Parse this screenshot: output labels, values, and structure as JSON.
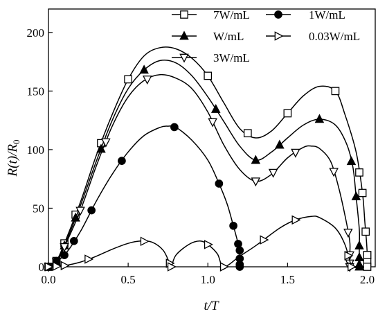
{
  "chart_data": {
    "type": "line",
    "xlabel": "t/T",
    "ylabel": "R(t)/R0",
    "xlim": [
      0,
      2.05
    ],
    "ylim": [
      0,
      220
    ],
    "xticks": [
      "0.0",
      "0.5",
      "1.0",
      "1.5",
      "2.0"
    ],
    "yticks": [
      "0",
      "50",
      "100",
      "150",
      "200"
    ],
    "grid": false,
    "legend_position": "top-right",
    "series": [
      {
        "name": "7W/mL",
        "marker": "square-open",
        "points": [
          [
            0,
            0
          ],
          [
            0.05,
            5
          ],
          [
            0.1,
            20
          ],
          [
            0.2,
            55
          ],
          [
            0.3,
            95
          ],
          [
            0.4,
            130
          ],
          [
            0.5,
            160
          ],
          [
            0.6,
            180
          ],
          [
            0.7,
            187
          ],
          [
            0.8,
            186
          ],
          [
            0.9,
            178
          ],
          [
            1.0,
            163
          ],
          [
            1.1,
            140
          ],
          [
            1.2,
            118
          ],
          [
            1.3,
            110
          ],
          [
            1.4,
            116
          ],
          [
            1.5,
            131
          ],
          [
            1.6,
            146
          ],
          [
            1.7,
            154
          ],
          [
            1.8,
            150
          ],
          [
            1.86,
            130
          ],
          [
            1.93,
            98
          ],
          [
            1.97,
            63
          ],
          [
            1.985,
            38
          ],
          [
            1.995,
            22
          ],
          [
            2.0,
            10
          ],
          [
            2.0,
            4
          ],
          [
            2.0,
            0
          ]
        ],
        "markers_x": [
          0,
          0.05,
          0.1,
          0.17,
          0.33,
          0.5,
          1.0,
          1.25,
          1.5,
          1.8,
          1.95,
          1.97,
          1.99,
          2.0,
          2.0,
          2.0,
          2.0
        ]
      },
      {
        "name": "W/mL",
        "marker": "triangle-up-filled",
        "points": [
          [
            0,
            0
          ],
          [
            0.05,
            4
          ],
          [
            0.1,
            18
          ],
          [
            0.2,
            52
          ],
          [
            0.3,
            90
          ],
          [
            0.4,
            125
          ],
          [
            0.5,
            152
          ],
          [
            0.6,
            168
          ],
          [
            0.7,
            176
          ],
          [
            0.8,
            174
          ],
          [
            0.9,
            163
          ],
          [
            1.0,
            145
          ],
          [
            1.1,
            124
          ],
          [
            1.2,
            103
          ],
          [
            1.3,
            91
          ],
          [
            1.4,
            98
          ],
          [
            1.5,
            110
          ],
          [
            1.6,
            121
          ],
          [
            1.7,
            126
          ],
          [
            1.8,
            121
          ],
          [
            1.87,
            105
          ],
          [
            1.91,
            85
          ],
          [
            1.93,
            60
          ],
          [
            1.95,
            32
          ],
          [
            1.95,
            18
          ],
          [
            1.95,
            8
          ],
          [
            1.95,
            2
          ],
          [
            1.95,
            0
          ]
        ],
        "markers_x": [
          0,
          0.05,
          0.1,
          0.17,
          0.33,
          0.6,
          1.05,
          1.3,
          1.45,
          1.7,
          1.9,
          1.93,
          1.95,
          1.95,
          1.95,
          1.95
        ]
      },
      {
        "name": "3W/mL",
        "marker": "triangle-down-open",
        "points": [
          [
            0,
            0
          ],
          [
            0.05,
            4
          ],
          [
            0.1,
            17
          ],
          [
            0.2,
            48
          ],
          [
            0.3,
            86
          ],
          [
            0.4,
            120
          ],
          [
            0.5,
            145
          ],
          [
            0.6,
            159
          ],
          [
            0.7,
            164
          ],
          [
            0.8,
            161
          ],
          [
            0.9,
            152
          ],
          [
            1.0,
            132
          ],
          [
            1.1,
            104
          ],
          [
            1.2,
            83
          ],
          [
            1.3,
            73
          ],
          [
            1.4,
            79
          ],
          [
            1.5,
            93
          ],
          [
            1.6,
            102
          ],
          [
            1.65,
            103
          ],
          [
            1.7,
            101
          ],
          [
            1.77,
            90
          ],
          [
            1.82,
            68
          ],
          [
            1.86,
            44
          ],
          [
            1.89,
            22
          ],
          [
            1.89,
            10
          ],
          [
            1.89,
            3
          ],
          [
            1.89,
            0
          ]
        ],
        "markers_x": [
          0,
          0.05,
          0.1,
          0.2,
          0.36,
          0.62,
          1.03,
          1.3,
          1.41,
          1.55,
          1.79,
          1.88,
          1.89,
          1.89,
          1.89
        ]
      },
      {
        "name": "1W/mL",
        "marker": "circle-filled",
        "points": [
          [
            0,
            0
          ],
          [
            0.1,
            10
          ],
          [
            0.2,
            30
          ],
          [
            0.3,
            56
          ],
          [
            0.4,
            79
          ],
          [
            0.5,
            98
          ],
          [
            0.6,
            112
          ],
          [
            0.7,
            119
          ],
          [
            0.75,
            120
          ],
          [
            0.8,
            119
          ],
          [
            0.9,
            108
          ],
          [
            1.0,
            91
          ],
          [
            1.07,
            71
          ],
          [
            1.12,
            54
          ],
          [
            1.15,
            40
          ],
          [
            1.18,
            25
          ],
          [
            1.2,
            14
          ],
          [
            1.2,
            7
          ],
          [
            1.2,
            2
          ],
          [
            1.2,
            0
          ]
        ],
        "markers_x": [
          0,
          0.05,
          0.1,
          0.16,
          0.27,
          0.46,
          0.79,
          1.07,
          1.16,
          1.19,
          1.2,
          1.2,
          1.2,
          1.2
        ]
      },
      {
        "name": "0.03W/mL",
        "marker": "triangle-right-open",
        "points": [
          [
            0,
            0
          ],
          [
            0.1,
            1
          ],
          [
            0.2,
            4
          ],
          [
            0.3,
            9
          ],
          [
            0.4,
            15
          ],
          [
            0.5,
            20
          ],
          [
            0.58,
            22
          ],
          [
            0.65,
            21
          ],
          [
            0.72,
            14
          ],
          [
            0.76,
            3
          ],
          [
            0.77,
            0
          ],
          [
            0.8,
            10
          ],
          [
            0.88,
            19
          ],
          [
            0.95,
            22
          ],
          [
            1.0,
            19
          ],
          [
            1.06,
            11
          ],
          [
            1.1,
            0
          ],
          [
            1.2,
            9
          ],
          [
            1.3,
            18
          ],
          [
            1.45,
            33
          ],
          [
            1.55,
            40
          ],
          [
            1.65,
            43
          ],
          [
            1.7,
            42
          ],
          [
            1.8,
            33
          ],
          [
            1.86,
            19
          ],
          [
            1.9,
            0
          ]
        ],
        "markers_x": [
          0,
          0.05,
          0.1,
          0.25,
          0.6,
          0.76,
          0.77,
          1.0,
          1.1,
          1.1,
          1.35,
          1.55,
          1.88,
          1.9
        ]
      }
    ],
    "legend": [
      {
        "label": "7W/mL",
        "marker": "square-open"
      },
      {
        "label": "1W/mL",
        "marker": "circle-filled"
      },
      {
        "label": "W/mL",
        "marker": "triangle-up-filled"
      },
      {
        "label": "0.03W/mL",
        "marker": "triangle-right-open"
      },
      {
        "label": "3W/mL",
        "marker": "triangle-down-open"
      }
    ]
  }
}
